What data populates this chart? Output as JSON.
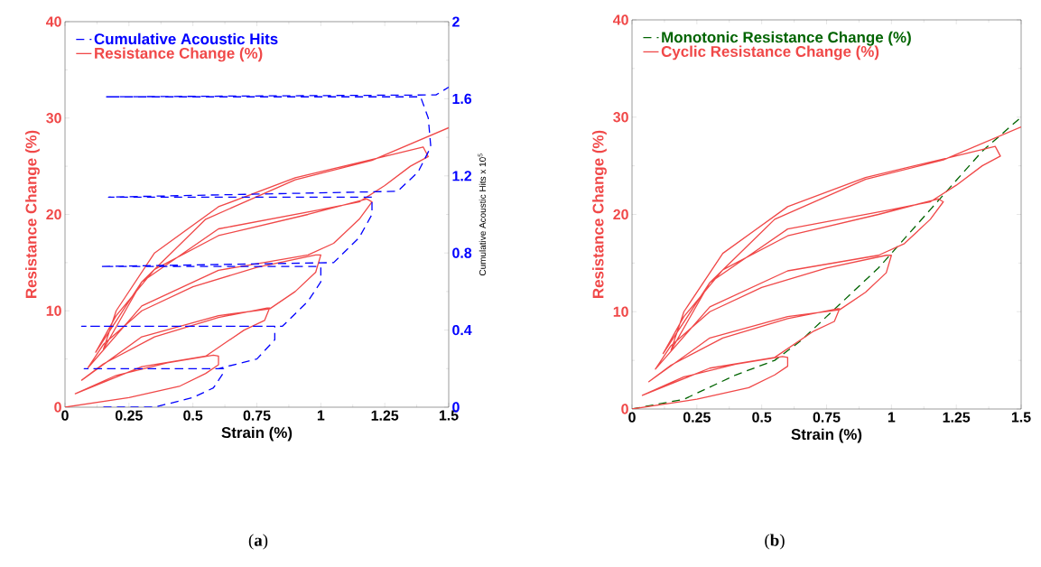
{
  "chart_data": [
    {
      "type": "line",
      "xlabel": "Strain (%)",
      "ylabel": "Resistance Change (%)",
      "y2label": "Cumulative Acoustic Hits x 10$^{5}$",
      "annotations": [
        "(**a**)"
      ],
      "xlim": [
        0,
        1.5
      ],
      "xticks": [
        0,
        0.25,
        0.5,
        0.75,
        1,
        1.25,
        1.5
      ],
      "ylim": [
        0,
        40
      ],
      "yticks": [
        0,
        10,
        20,
        30,
        40
      ],
      "y2lim": [
        0,
        2
      ],
      "y2ticks": [
        0,
        0.4,
        0.8,
        1.2,
        1.6,
        2
      ],
      "legend": "top left",
      "series": [
        {
          "name": "Cumulative Acoustic Hits",
          "color": "#0000ff",
          "axis": "y2",
          "line_style": "dashed",
          "x": [
            0.15,
            0.35,
            0.5,
            0.58,
            0.62,
            0.62,
            0.075,
            0.6,
            0.75,
            0.82,
            0.82,
            0.065,
            0.85,
            0.95,
            1.0,
            1.0,
            0.14,
            1.05,
            1.15,
            1.2,
            1.2,
            0.17,
            1.3,
            1.38,
            1.43,
            1.42,
            1.39,
            0.16,
            1.45,
            1.5
          ],
          "values": [
            0,
            0,
            0.05,
            0.1,
            0.18,
            0.2,
            0.2,
            0.2,
            0.25,
            0.35,
            0.42,
            0.42,
            0.42,
            0.55,
            0.65,
            0.73,
            0.73,
            0.75,
            0.88,
            1.0,
            1.09,
            1.09,
            1.12,
            1.22,
            1.35,
            1.5,
            1.61,
            1.61,
            1.62,
            1.66
          ]
        },
        {
          "name": "Resistance Change (%)",
          "color": "#f04848",
          "axis": "y",
          "line_style": "solid",
          "x": [
            0,
            0.25,
            0.45,
            0.55,
            0.6,
            0.6,
            0.58,
            0.4,
            0.2,
            0.04,
            0.3,
            0.55,
            0.7,
            0.78,
            0.8,
            0.79,
            0.6,
            0.35,
            0.15,
            0.065,
            0.3,
            0.6,
            0.8,
            0.9,
            0.98,
            1.0,
            0.98,
            0.75,
            0.5,
            0.3,
            0.15,
            0.09,
            0.3,
            0.6,
            0.95,
            1.05,
            1.15,
            1.2,
            1.18,
            0.95,
            0.6,
            0.35,
            0.2,
            0.12,
            0.3,
            0.6,
            1.0,
            1.15,
            1.25,
            1.35,
            1.42,
            1.4,
            1.2,
            0.9,
            0.6,
            0.35,
            0.2,
            0.15,
            0.3,
            0.55,
            0.9,
            1.2,
            1.5
          ],
          "values": [
            0,
            1,
            2.2,
            3.5,
            4.4,
            5.3,
            5.4,
            4.6,
            3.3,
            1.4,
            4.2,
            5.3,
            8,
            9,
            10.3,
            10.3,
            9.3,
            7.3,
            4.5,
            2.8,
            7.3,
            9.5,
            10.2,
            12,
            14,
            15.8,
            15.8,
            14.5,
            12.5,
            10,
            6.5,
            4.1,
            10.5,
            14.2,
            15.8,
            17,
            19.5,
            21.3,
            21.6,
            20,
            17.8,
            14.3,
            9.5,
            5.7,
            13,
            18.5,
            20.5,
            21.3,
            23,
            25,
            26,
            27,
            25.7,
            23.8,
            20.8,
            16,
            10,
            6,
            13,
            19.5,
            23.6,
            25.6,
            29
          ]
        }
      ]
    },
    {
      "type": "line",
      "xlabel": "Strain (%)",
      "ylabel": "Resistance Change (%)",
      "annotations": [
        "(**b**)"
      ],
      "xlim": [
        0,
        1.5
      ],
      "xticks": [
        0,
        0.25,
        0.5,
        0.75,
        1,
        1.25,
        1.5
      ],
      "ylim": [
        0,
        40
      ],
      "yticks": [
        0,
        10,
        20,
        30,
        40
      ],
      "legend": "top left",
      "series": [
        {
          "name": "Monotonic Resistance Change (%)",
          "color": "#006400",
          "axis": "y",
          "line_style": "dashed",
          "x": [
            0,
            0.2,
            0.4,
            0.55,
            0.65,
            0.75,
            0.85,
            0.95,
            1.05,
            1.15,
            1.25,
            1.35,
            1.5
          ],
          "values": [
            0,
            1,
            3.5,
            5,
            7,
            9.5,
            12,
            14.5,
            17.5,
            20.5,
            23.5,
            26.5,
            30
          ]
        },
        {
          "name": "Cyclic Resistance Change (%)",
          "color": "#f04848",
          "axis": "y",
          "line_style": "solid",
          "x": [
            0,
            0.25,
            0.45,
            0.55,
            0.6,
            0.6,
            0.58,
            0.4,
            0.2,
            0.04,
            0.3,
            0.55,
            0.7,
            0.78,
            0.8,
            0.79,
            0.6,
            0.35,
            0.15,
            0.065,
            0.3,
            0.6,
            0.8,
            0.9,
            0.98,
            1.0,
            0.98,
            0.75,
            0.5,
            0.3,
            0.15,
            0.09,
            0.3,
            0.6,
            0.95,
            1.05,
            1.15,
            1.2,
            1.18,
            0.95,
            0.6,
            0.35,
            0.2,
            0.12,
            0.3,
            0.6,
            1.0,
            1.15,
            1.25,
            1.35,
            1.42,
            1.4,
            1.2,
            0.9,
            0.6,
            0.35,
            0.2,
            0.15,
            0.3,
            0.55,
            0.9,
            1.2,
            1.5
          ],
          "values": [
            0,
            1,
            2.2,
            3.5,
            4.4,
            5.3,
            5.4,
            4.6,
            3.3,
            1.4,
            4.2,
            5.3,
            8,
            9,
            10.3,
            10.3,
            9.3,
            7.3,
            4.5,
            2.8,
            7.3,
            9.5,
            10.2,
            12,
            14,
            15.8,
            15.8,
            14.5,
            12.5,
            10,
            6.5,
            4.1,
            10.5,
            14.2,
            15.8,
            17,
            19.5,
            21.3,
            21.6,
            20,
            17.8,
            14.3,
            9.5,
            5.7,
            13,
            18.5,
            20.5,
            21.3,
            23,
            25,
            26,
            27,
            25.7,
            23.8,
            20.8,
            16,
            10,
            6,
            13,
            19.5,
            23.6,
            25.6,
            29
          ]
        }
      ]
    }
  ]
}
